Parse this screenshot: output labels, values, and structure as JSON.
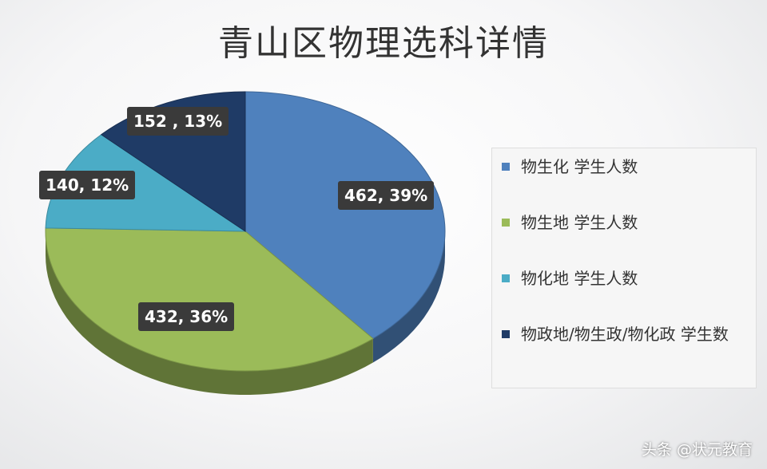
{
  "chart_data": {
    "type": "pie",
    "title": "青山区物理选科详情",
    "categories": [
      "物生化 学生人数",
      "物生地 学生人数",
      "物化地 学生人数",
      "物政地/物生政/物化政 学生数"
    ],
    "values": [
      462,
      432,
      140,
      152
    ],
    "percents": [
      39,
      36,
      12,
      13
    ],
    "data_labels": [
      "462, 39%",
      "432, 36%",
      "140, 12%",
      "152 , 13%"
    ],
    "colors": [
      "#4f81bd",
      "#9bbb59",
      "#4bacc6",
      "#1f3b66"
    ],
    "legend_position": "right"
  },
  "watermark": "头条 @状元教育"
}
